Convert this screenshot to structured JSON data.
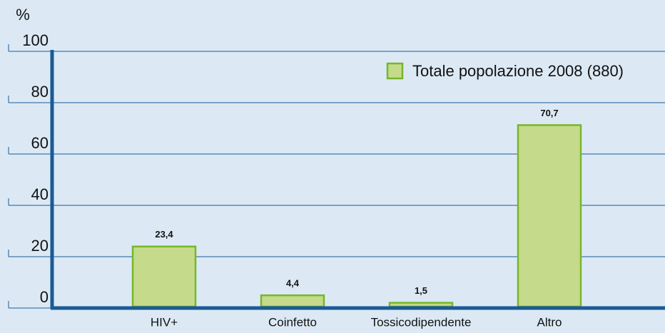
{
  "chart_data": {
    "type": "bar",
    "ylabel": "%",
    "categories": [
      "HIV+",
      "Coinfetto",
      "Tossicodipendente",
      "Altro"
    ],
    "series": [
      {
        "name": "Totale popolazione 2008 (880)",
        "color": "#c6da8b",
        "values": [
          23.4,
          4.4,
          1.5,
          70.7
        ],
        "value_labels": [
          "23,4",
          "4,4",
          "1,5",
          "70,7"
        ]
      }
    ],
    "ylim": [
      0,
      100
    ],
    "yticks": [
      0,
      20,
      40,
      60,
      80,
      100
    ],
    "grid": true,
    "legend": "upper right"
  }
}
